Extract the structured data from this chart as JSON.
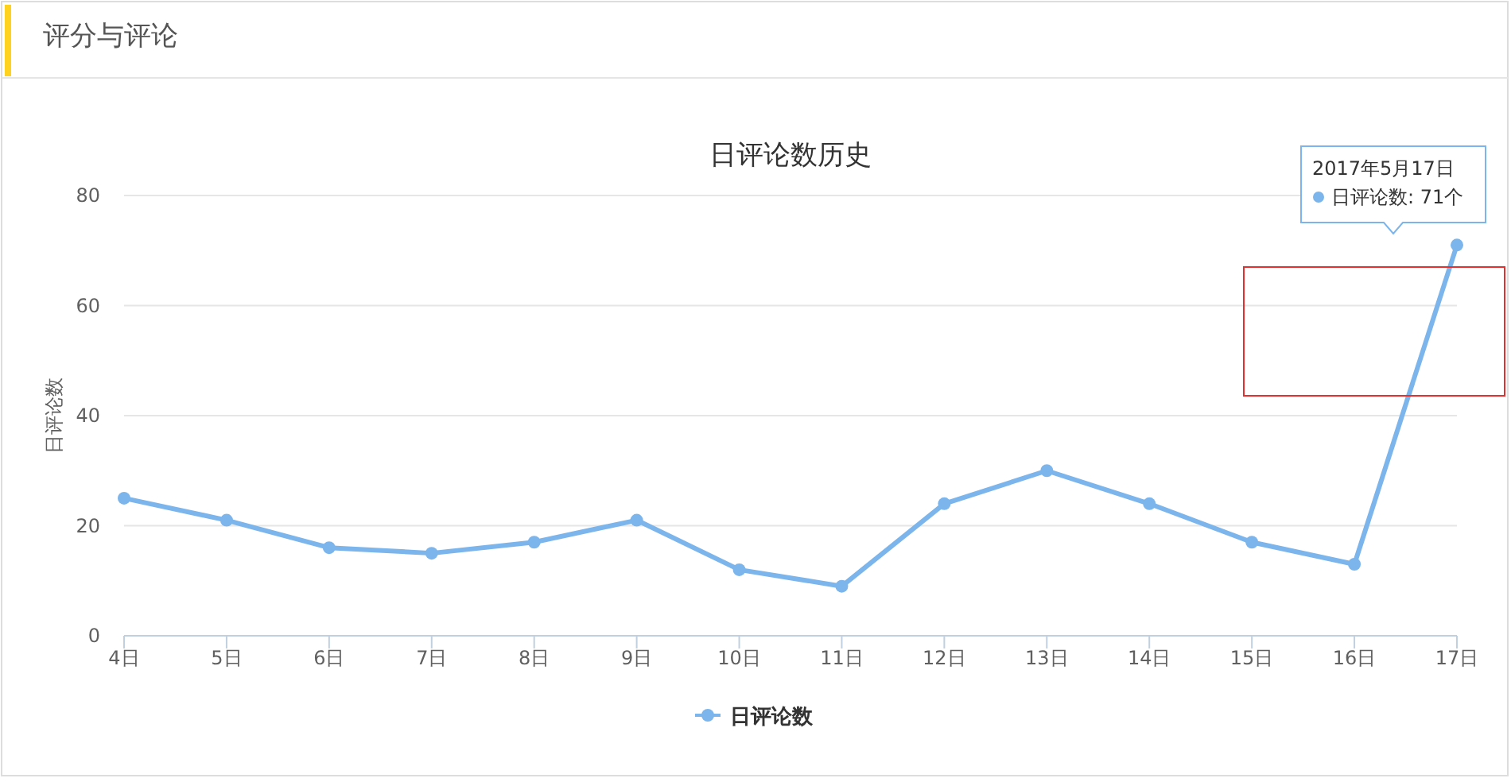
{
  "chart_data": {
    "type": "line",
    "title": "日评论数历史",
    "ylabel": "日评论数",
    "categories": [
      "4日",
      "5日",
      "6日",
      "7日",
      "8日",
      "9日",
      "10日",
      "11日",
      "12日",
      "13日",
      "14日",
      "15日",
      "16日",
      "17日"
    ],
    "series": [
      {
        "name": "日评论数",
        "color": "#7cb5ec",
        "values": [
          25,
          21,
          16,
          15,
          17,
          21,
          12,
          9,
          24,
          30,
          24,
          17,
          13,
          71
        ]
      }
    ],
    "ylim": [
      0,
      80
    ],
    "yticks": [
      0,
      20,
      40,
      60,
      80
    ],
    "grid": "y",
    "legend": "bottom",
    "marker": "circle",
    "line_style": "solid",
    "annotations": [
      "评分与评论",
      "2017年5月17日",
      "日评论数: 71个"
    ]
  }
}
